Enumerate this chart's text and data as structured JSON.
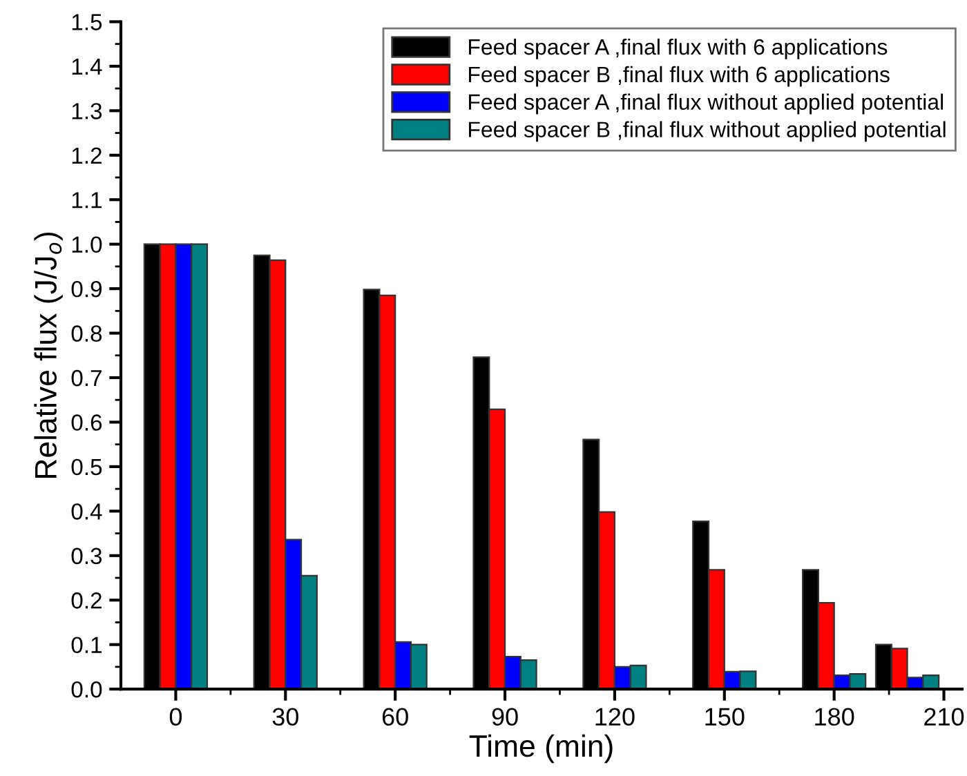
{
  "chart_data": {
    "type": "bar",
    "xlabel": "Time (min)",
    "ylabel": "Relative flux (J/J$_{o}$)",
    "x": [
      0,
      30,
      60,
      90,
      120,
      150,
      180,
      200
    ],
    "xlim": [
      -15,
      215
    ],
    "xticks": [
      0,
      30,
      60,
      90,
      120,
      150,
      180,
      210
    ],
    "ylim": [
      0,
      1.5
    ],
    "yticks": [
      {
        "value": 0,
        "label": "0.0"
      },
      0.1,
      0.2,
      0.3,
      0.4,
      0.5,
      0.6,
      0.7,
      0.8,
      0.9,
      {
        "value": 1,
        "label": "1.0"
      },
      1.1,
      1.2,
      1.3,
      1.4,
      1.5
    ],
    "grid": false,
    "legend": "top right",
    "series": [
      {
        "name": "Feed spacer A ,final flux with 6 applications",
        "color": "#000000",
        "values": [
          1.0,
          0.975,
          0.898,
          0.746,
          0.561,
          0.377,
          0.268,
          0.1
        ]
      },
      {
        "name": "Feed spacer B ,final flux with 6 applications",
        "color": "#ff0000",
        "values": [
          1.0,
          0.964,
          0.885,
          0.629,
          0.398,
          0.268,
          0.194,
          0.091
        ]
      },
      {
        "name": "Feed spacer A ,final flux without applied potential",
        "color": "#0000ff",
        "values": [
          1.0,
          0.336,
          0.106,
          0.073,
          0.05,
          0.039,
          0.031,
          0.026
        ]
      },
      {
        "name": "Feed spacer B ,final flux without applied potential",
        "color": "#008080",
        "values": [
          1.0,
          0.255,
          0.1,
          0.065,
          0.053,
          0.04,
          0.034,
          0.031
        ]
      }
    ]
  }
}
